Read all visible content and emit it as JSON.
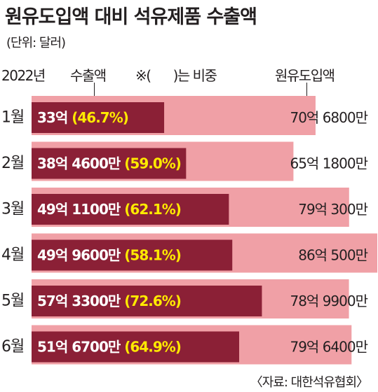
{
  "title": "원유도입액 대비 석유제품 수출액",
  "unit": "(단위: 달러)",
  "source": "〈자료: 대한석유협회〉",
  "colors": {
    "export_bar": "#8b2036",
    "import_bar": "#f0a0a6",
    "share_text": "#ffea00"
  },
  "chart_data": {
    "type": "bar",
    "orientation": "horizontal",
    "year_label": "2022년",
    "legend": {
      "export_label": "수출액",
      "note_prefix": "※(",
      "note_suffix": ")는 비중",
      "import_label": "원유도입액"
    },
    "categories": [
      "1월",
      "2월",
      "3월",
      "4월",
      "5월",
      "6월"
    ],
    "series": [
      {
        "name": "수출액",
        "values": [
          3300000000,
          3846000000,
          4911000000,
          4996000000,
          5733000000,
          5167000000
        ],
        "labels": [
          "33억",
          "38억 4600만",
          "49억 1100만",
          "49억 9600만",
          "57억 3300만",
          "51억 6700만"
        ],
        "share_labels": [
          "(46.7%)",
          "(59.0%)",
          "(62.1%)",
          "(58.1%)",
          "(72.6%)",
          "(64.9%)"
        ]
      },
      {
        "name": "원유도입액",
        "values": [
          7068000000,
          6518000000,
          7903000000,
          8605000000,
          7899000000,
          7964000000
        ],
        "labels": [
          "70억 6800만",
          "65억 1800만",
          "79억 300만",
          "86억 500만",
          "78억 9900만",
          "79억 6400만"
        ]
      }
    ]
  }
}
